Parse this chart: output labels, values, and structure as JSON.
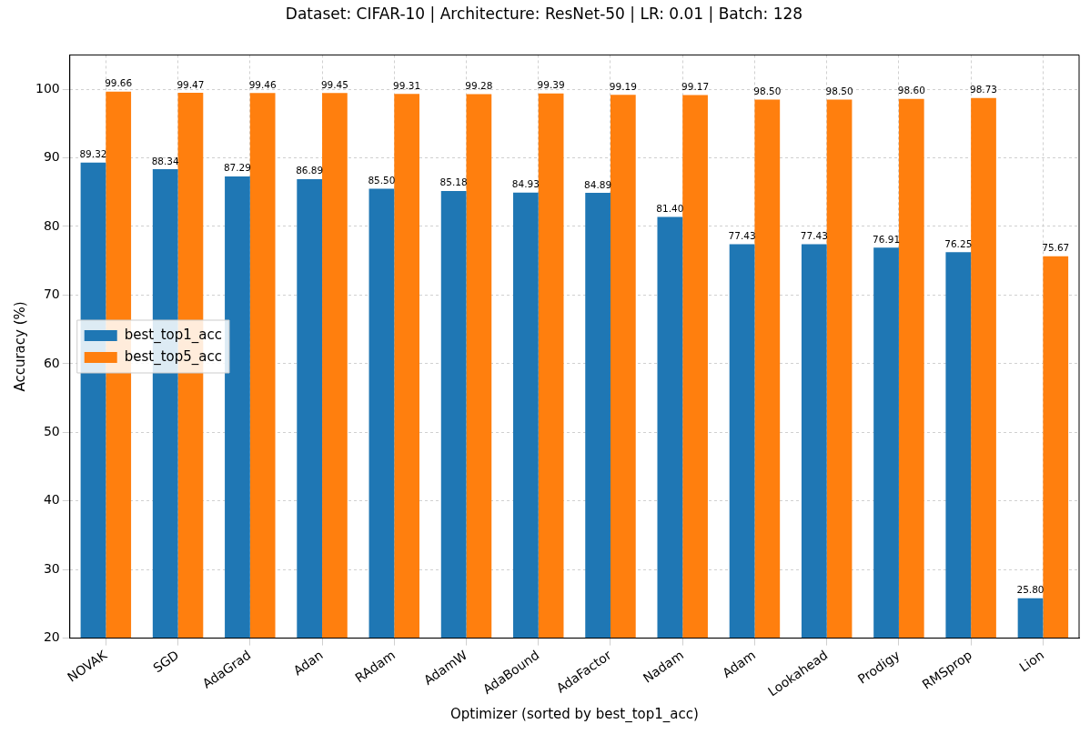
{
  "chart_data": {
    "type": "bar",
    "title": "Dataset: CIFAR-10 | Architecture: ResNet-50 | LR: 0.01 | Batch: 128",
    "xlabel": "Optimizer (sorted by best_top1_acc)",
    "ylabel": "Accuracy (%)",
    "categories": [
      "NOVAK",
      "SGD",
      "AdaGrad",
      "Adan",
      "RAdam",
      "AdamW",
      "AdaBound",
      "AdaFactor",
      "Nadam",
      "Adam",
      "Lookahead",
      "Prodigy",
      "RMSprop",
      "Lion"
    ],
    "series": [
      {
        "name": "best_top1_acc",
        "color": "#1f77b4",
        "values": [
          89.32,
          88.34,
          87.29,
          86.89,
          85.5,
          85.18,
          84.93,
          84.89,
          81.4,
          77.43,
          77.43,
          76.91,
          76.25,
          25.8
        ],
        "value_labels": [
          "89.32",
          "88.34",
          "87.29",
          "86.89",
          "85.50",
          "85.18",
          "84.93",
          "84.89",
          "81.40",
          "77.43",
          "77.43",
          "76.91",
          "76.25",
          "25.80"
        ]
      },
      {
        "name": "best_top5_acc",
        "color": "#ff7f0e",
        "values": [
          99.66,
          99.47,
          99.46,
          99.45,
          99.31,
          99.28,
          99.39,
          99.19,
          99.17,
          98.5,
          98.5,
          98.6,
          98.73,
          75.67
        ],
        "value_labels": [
          "99.66",
          "99.47",
          "99.46",
          "99.45",
          "99.31",
          "99.28",
          "99.39",
          "99.19",
          "99.17",
          "98.50",
          "98.50",
          "98.60",
          "98.73",
          "75.67"
        ]
      }
    ],
    "ylim": [
      20,
      105
    ],
    "yticks": [
      20,
      30,
      40,
      50,
      60,
      70,
      80,
      90,
      100
    ],
    "grid": true,
    "legend": "left"
  }
}
